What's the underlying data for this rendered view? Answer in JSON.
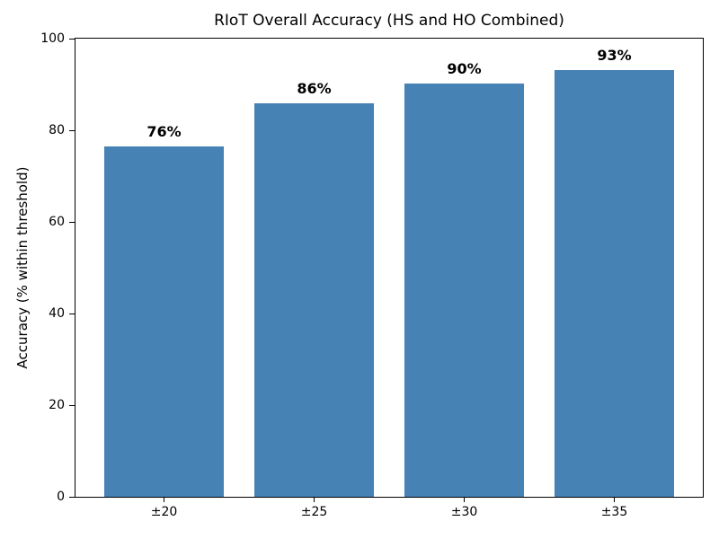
{
  "figure": {
    "background": "#ffffff"
  },
  "chart_data": {
    "type": "bar",
    "title": "RIoT Overall Accuracy (HS and HO Combined)",
    "xlabel": "",
    "ylabel": "Accuracy (% within threshold)",
    "categories": [
      "±20",
      "±25",
      "±30",
      "±35"
    ],
    "values": [
      76.4,
      85.9,
      90.2,
      93.2
    ],
    "bar_labels": [
      "76%",
      "86%",
      "90%",
      "93%"
    ],
    "ylim": [
      0,
      100
    ],
    "yticks": [
      0,
      20,
      40,
      60,
      80,
      100
    ],
    "bar_color": "#4682b4",
    "axis_color": "#000000",
    "grid": false,
    "legend_position": "none"
  }
}
